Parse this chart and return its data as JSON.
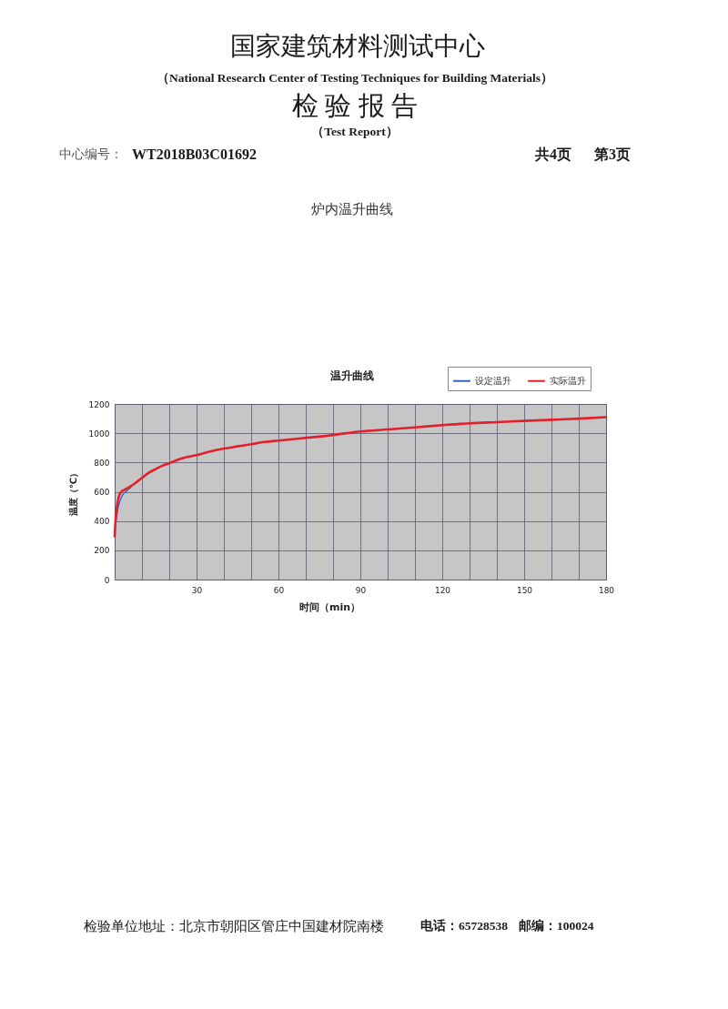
{
  "chart_data": {
    "type": "line",
    "title": "温升曲线",
    "xlabel": "时间（min）",
    "ylabel": "温度（℃）",
    "xlim": [
      0,
      180
    ],
    "xticks": [
      {
        "value": 0,
        "label": null
      },
      {
        "value": 10,
        "label": null
      },
      {
        "value": 20,
        "label": null
      },
      30,
      {
        "value": 40,
        "label": null
      },
      {
        "value": 50,
        "label": null
      },
      60,
      {
        "value": 70,
        "label": null
      },
      {
        "value": 80,
        "label": null
      },
      90,
      {
        "value": 100,
        "label": null
      },
      {
        "value": 110,
        "label": null
      },
      120,
      {
        "value": 130,
        "label": null
      },
      {
        "value": 140,
        "label": null
      },
      150,
      {
        "value": 160,
        "label": null
      },
      {
        "value": 170,
        "label": null
      },
      180
    ],
    "ylim": [
      0,
      1200
    ],
    "yticks": [
      0,
      200,
      400,
      600,
      800,
      1000,
      1200
    ],
    "grid": true,
    "legend": "top right",
    "series": [
      {
        "name": "设定温升",
        "color": "#3a5fcd",
        "x": [
          0,
          0.4,
          0.9,
          1.5,
          2.2,
          3,
          4,
          5,
          6
        ],
        "values": [
          295,
          380,
          455,
          510,
          550,
          580,
          600,
          615,
          630
        ]
      },
      {
        "name": "实际温升",
        "color": "#e3202a",
        "x": [
          0,
          0.3,
          0.6,
          1,
          1.5,
          2.2,
          3,
          4,
          5,
          6.5,
          8,
          10,
          12.5,
          15,
          17.5,
          20,
          25,
          30,
          35,
          40,
          45,
          50,
          55,
          60,
          70,
          80,
          90,
          100,
          110,
          120,
          130,
          140,
          150,
          160,
          170,
          180
        ],
        "values": [
          295,
          400,
          460,
          520,
          565,
          595,
          608,
          618,
          628,
          645,
          665,
          695,
          730,
          755,
          778,
          795,
          830,
          850,
          875,
          895,
          910,
          925,
          940,
          950,
          968,
          988,
          1012,
          1026,
          1040,
          1055,
          1068,
          1076,
          1084,
          1092,
          1100,
          1110
        ]
      }
    ],
    "annotations": [
      "国家建筑材料测试中心",
      "（National Research Center of Testing Techniques for Building Materials）",
      "检 验 报 告",
      "（Test Report）",
      "中心编号：",
      "WT2018B03C01692",
      "共4页",
      "第3页",
      "炉内温升曲线",
      "检验单位地址：北京市朝阳区管庄中国建材院南楼",
      "电话：65728538",
      "邮编：100024"
    ]
  }
}
